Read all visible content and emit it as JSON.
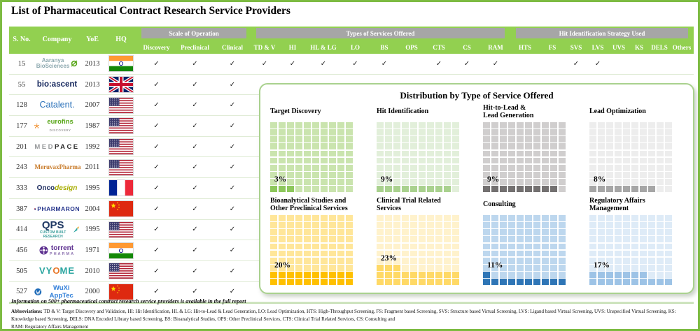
{
  "title": "List of Pharmaceutical Contract Research Service Providers",
  "colors": {
    "header_green": "#92D050",
    "group_band_gray": "#A6A6A6",
    "outer_border_green": "#7DBB42",
    "panel_border_green": "#A9D18E"
  },
  "table": {
    "fixed_headers": [
      "S. No.",
      "Company",
      "YoE",
      "HQ"
    ],
    "scale_headers": [
      "Discovery",
      "Preclinical",
      "Clinical"
    ],
    "service_headers": [
      "TD & V",
      "HI",
      "HL & LG",
      "LO",
      "BS",
      "OPS",
      "CTS",
      "CS",
      "RAM",
      "HTS",
      "FS",
      "SVS",
      "LVS",
      "UVS",
      "KS",
      "DELS",
      "Others"
    ],
    "groups": [
      {
        "label": "Scale of Operation"
      },
      {
        "label": "Types of Services Offered"
      },
      {
        "label": "Hit Identification Strategy Used"
      }
    ],
    "check_glyph": "✓",
    "rows": [
      {
        "sno": "15",
        "name": "Aaranya BioSciences",
        "yoe": "2013",
        "hq": "in",
        "logo": {
          "icon": "leaf",
          "iconEnd": 1,
          "parts": [
            {
              "t": "Aaranya",
              "c": "#8ba7ae",
              "s": 8,
              "b": 1,
              "block": 1
            },
            {
              "t": "BioSciences",
              "c": "#8ba7ae",
              "s": 8,
              "b": 1,
              "block": 1
            }
          ]
        },
        "scale": [
          1,
          1,
          1
        ],
        "services": [
          1,
          1,
          1,
          1,
          1,
          0,
          1,
          1,
          1,
          0,
          0,
          1,
          1,
          0,
          0,
          0,
          0
        ]
      },
      {
        "sno": "55",
        "name": "BioAscent",
        "yoe": "2013",
        "hq": "gb",
        "logo": {
          "parts": [
            {
              "t": "bio:ascent",
              "c": "#14265c",
              "s": 11.5,
              "b": 1
            }
          ]
        },
        "scale": [
          1,
          1,
          1
        ],
        "services": []
      },
      {
        "sno": "128",
        "name": "Catalent",
        "yoe": "2007",
        "hq": "us",
        "logo": {
          "parts": [
            {
              "t": "Catalent.",
              "c": "#2970b9",
              "s": 12.5
            }
          ]
        },
        "scale": [
          1,
          1,
          1
        ],
        "services": []
      },
      {
        "sno": "177",
        "name": "Eurofins Discovery",
        "yoe": "1987",
        "hq": "us",
        "logo": {
          "icon": "euro",
          "parts": [
            {
              "t": "eurofins",
              "c": "#58a618",
              "s": 9.5,
              "b": 1
            },
            {
              "t": " DISCOVERY",
              "c": "#a0a0a0",
              "s": 4.5,
              "b": 1,
              "ls": 0.5
            }
          ]
        },
        "scale": [
          1,
          1,
          1
        ],
        "services": []
      },
      {
        "sno": "201",
        "name": "Medpace",
        "yoe": "1992",
        "hq": "us",
        "logo": {
          "parts": [
            {
              "t": "MED",
              "c": "#97999b",
              "s": 9.5,
              "b": 1,
              "ls": 2.5
            },
            {
              "t": "PACE",
              "c": "#2b2b2b",
              "s": 9.5,
              "b": 1,
              "ls": 2.5
            }
          ]
        },
        "scale": [
          1,
          1,
          1
        ],
        "services": []
      },
      {
        "sno": "243",
        "name": "MeruvaxPharma",
        "yoe": "2011",
        "hq": "us",
        "logo": {
          "icon": "flask",
          "parts": [
            {
              "t": "MeruvaxPharma",
              "c": "#c87a28",
              "s": 9,
              "b": 1,
              "serif": 1
            }
          ]
        },
        "scale": [
          1,
          1,
          1
        ],
        "services": []
      },
      {
        "sno": "333",
        "name": "Oncodesign",
        "yoe": "1995",
        "hq": "fr",
        "logo": {
          "parts": [
            {
              "t": "Onco",
              "c": "#1b2a5e",
              "s": 10,
              "b": 1
            },
            {
              "t": "design",
              "c": "#a8ad00",
              "s": 10,
              "b": 1,
              "i": 1
            }
          ]
        },
        "scale": [
          1,
          1,
          1
        ],
        "services": []
      },
      {
        "sno": "387",
        "name": "Pharmaron",
        "yoe": "2004",
        "hq": "cn",
        "logo": {
          "icon": "pharm",
          "parts": [
            {
              "t": "PHARMARON",
              "c": "#26358c",
              "s": 8.5,
              "b": 1,
              "ls": 0.5
            }
          ]
        },
        "scale": [
          1,
          1,
          1
        ],
        "services": []
      },
      {
        "sno": "414",
        "name": "QPS",
        "yoe": "1995",
        "hq": "us",
        "logo": {
          "icon": "bird",
          "iconEnd": 1,
          "parts": [
            {
              "t": "QPS",
              "c": "#1f3864",
              "s": 15,
              "b": 1
            },
            {
              "t": "CUSTOM BUILT RESEARCH",
              "c": "#3a9e9b",
              "s": 5,
              "b": 1,
              "block": 1
            }
          ]
        },
        "scale": [
          1,
          1,
          1
        ],
        "services": []
      },
      {
        "sno": "456",
        "name": "Torrent Pharma",
        "yoe": "1971",
        "hq": "in",
        "logo": {
          "icon": "torrent",
          "parts": [
            {
              "t": "torrent",
              "c": "#5b2d8e",
              "s": 10,
              "b": 1,
              "block": 1
            },
            {
              "t": "PHARMA",
              "c": "#8a6fae",
              "s": 5.5,
              "b": 1,
              "ls": 2,
              "block": 1
            }
          ]
        },
        "scale": [
          1,
          1,
          1
        ],
        "services": []
      },
      {
        "sno": "505",
        "name": "Vyome",
        "yoe": "2010",
        "hq": "us",
        "logo": {
          "parts": [
            {
              "t": "VY",
              "c": "#2aa5a0",
              "s": 13,
              "b": 1,
              "ls": 1
            },
            {
              "t": "O",
              "c": "#e8792b",
              "s": 13,
              "b": 1
            },
            {
              "t": "ME",
              "c": "#2aa5a0",
              "s": 13,
              "b": 1,
              "ls": 1
            }
          ]
        },
        "scale": [
          1,
          1,
          1
        ],
        "services": []
      },
      {
        "sno": "527",
        "name": "WuXi AppTec",
        "yoe": "2000",
        "hq": "cn",
        "logo": {
          "icon": "wuxi",
          "parts": [
            {
              "t": "WuXi AppTec",
              "c": "#2f7ed8",
              "s": 9.5,
              "b": 1
            }
          ]
        },
        "scale": [
          1,
          1,
          1
        ],
        "services": []
      }
    ]
  },
  "panel": {
    "title": "Distribution by Type of Service Offered"
  },
  "chart_data": {
    "type": "waffle",
    "title": "Distribution by Type of Service Offered",
    "unit": "percent of providers; each square = 1% of a 10x10 grid",
    "grid": "10x10",
    "categories": [
      "Target Discovery",
      "Hit Identification",
      "Hit-to-Lead & Lead Generation",
      "Lead Optimization",
      "Bioanalytical Studies and Other Preclinical Services",
      "Clinical Trial Related Services",
      "Consulting",
      "Regulatory Affairs Management"
    ],
    "values": [
      3,
      9,
      9,
      8,
      20,
      23,
      11,
      17
    ],
    "charts": [
      {
        "label": "Target Discovery",
        "pct_label": "3%",
        "value": 3,
        "fill": "#8DC75C",
        "bg": "#CAE4AE"
      },
      {
        "label": "Hit Identification",
        "pct_label": "9%",
        "value": 9,
        "fill": "#A9D18E",
        "bg": "#E2EFDA"
      },
      {
        "label": "Hit-to-Lead &\nLead Generation",
        "pct_label": "9%",
        "value": 9,
        "fill": "#737070",
        "bg": "#D0CECE"
      },
      {
        "label": "Lead Optimization",
        "pct_label": "8%",
        "value": 8,
        "fill": "#A6A6A6",
        "bg": "#EDEDED"
      },
      {
        "label": "Bioanalytical Studies and\nOther Preclinical Services",
        "pct_label": "20%",
        "value": 20,
        "fill": "#FFC000",
        "bg": "#FFE699"
      },
      {
        "label": "Clinical Trial Related\nServices",
        "pct_label": "23%",
        "value": 23,
        "fill": "#FFD966",
        "bg": "#FFF2CC"
      },
      {
        "label": "Consulting",
        "pct_label": "11%",
        "value": 11,
        "fill": "#2E75B6",
        "bg": "#BDD7EE"
      },
      {
        "label": "Regulatory Affairs\nManagement",
        "pct_label": "17%",
        "value": 17,
        "fill": "#9DC3E6",
        "bg": "#DEEBF7"
      }
    ]
  },
  "footer": {
    "note": "Information on 500+ pharmaceutical contract research service providers is available in the full report",
    "abbr_label": "Abbreviations:",
    "abbr_line1": " TD & V: Target Discovery and Validation, HI: Hit Identification, HL & LG: Hit-to-Lead & Lead Generation, LO: Lead Optimization, HTS: High-Throughput Screening, FS: Fragment based Screening, SVS: Structure based Virtual Screening, LVS: Ligand based Virtual Screening, UVS: Unspecified Virtual Screening, KS: Knowledge based Screening, DELS: DNA Encoded Library based Screening, BS: Bioanalytical Studies, OPS: Other Preclinical Services, CTS: Clinical Trial Related Services, CS: Consulting and",
    "abbr_line2": "RAM: Regulatory Affairs Management"
  }
}
